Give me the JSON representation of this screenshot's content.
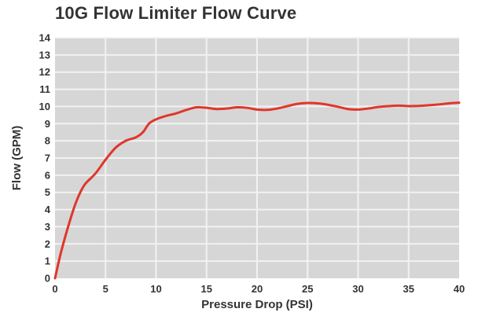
{
  "chart_data": {
    "type": "line",
    "title": "10G Flow Limiter Flow Curve",
    "xlabel": "Pressure Drop (PSI)",
    "ylabel": "Flow (GPM)",
    "xlim": [
      0,
      40
    ],
    "ylim": [
      0,
      14
    ],
    "x_ticks": [
      0,
      5,
      10,
      15,
      20,
      25,
      30,
      35,
      40
    ],
    "y_ticks": [
      0,
      1,
      2,
      3,
      4,
      5,
      6,
      7,
      8,
      9,
      10,
      11,
      12,
      13,
      14
    ],
    "grid": true,
    "series": [
      {
        "x": [
          0,
          0.5,
          1,
          1.5,
          2,
          2.5,
          3,
          4,
          5,
          6,
          7,
          8,
          8.7,
          9.3,
          10,
          11,
          12,
          13,
          14,
          15,
          16,
          17,
          18,
          19,
          20,
          21,
          22,
          23,
          24,
          25,
          26,
          27,
          28,
          29,
          30,
          31,
          32,
          33,
          34,
          35,
          36,
          37,
          38,
          39,
          40
        ],
        "y": [
          0,
          1.3,
          2.4,
          3.4,
          4.3,
          5.0,
          5.5,
          6.1,
          6.9,
          7.6,
          8.0,
          8.2,
          8.5,
          9.0,
          9.25,
          9.45,
          9.6,
          9.8,
          9.95,
          9.92,
          9.85,
          9.88,
          9.95,
          9.92,
          9.82,
          9.8,
          9.88,
          10.02,
          10.15,
          10.2,
          10.18,
          10.1,
          9.98,
          9.85,
          9.82,
          9.88,
          9.97,
          10.02,
          10.05,
          10.02,
          10.03,
          10.07,
          10.12,
          10.18,
          10.22
        ]
      }
    ],
    "colors": {
      "line": "#e0362b",
      "plot_background": "#d6d6d6",
      "grid": "#f2f2f2",
      "text": "#333333"
    }
  }
}
